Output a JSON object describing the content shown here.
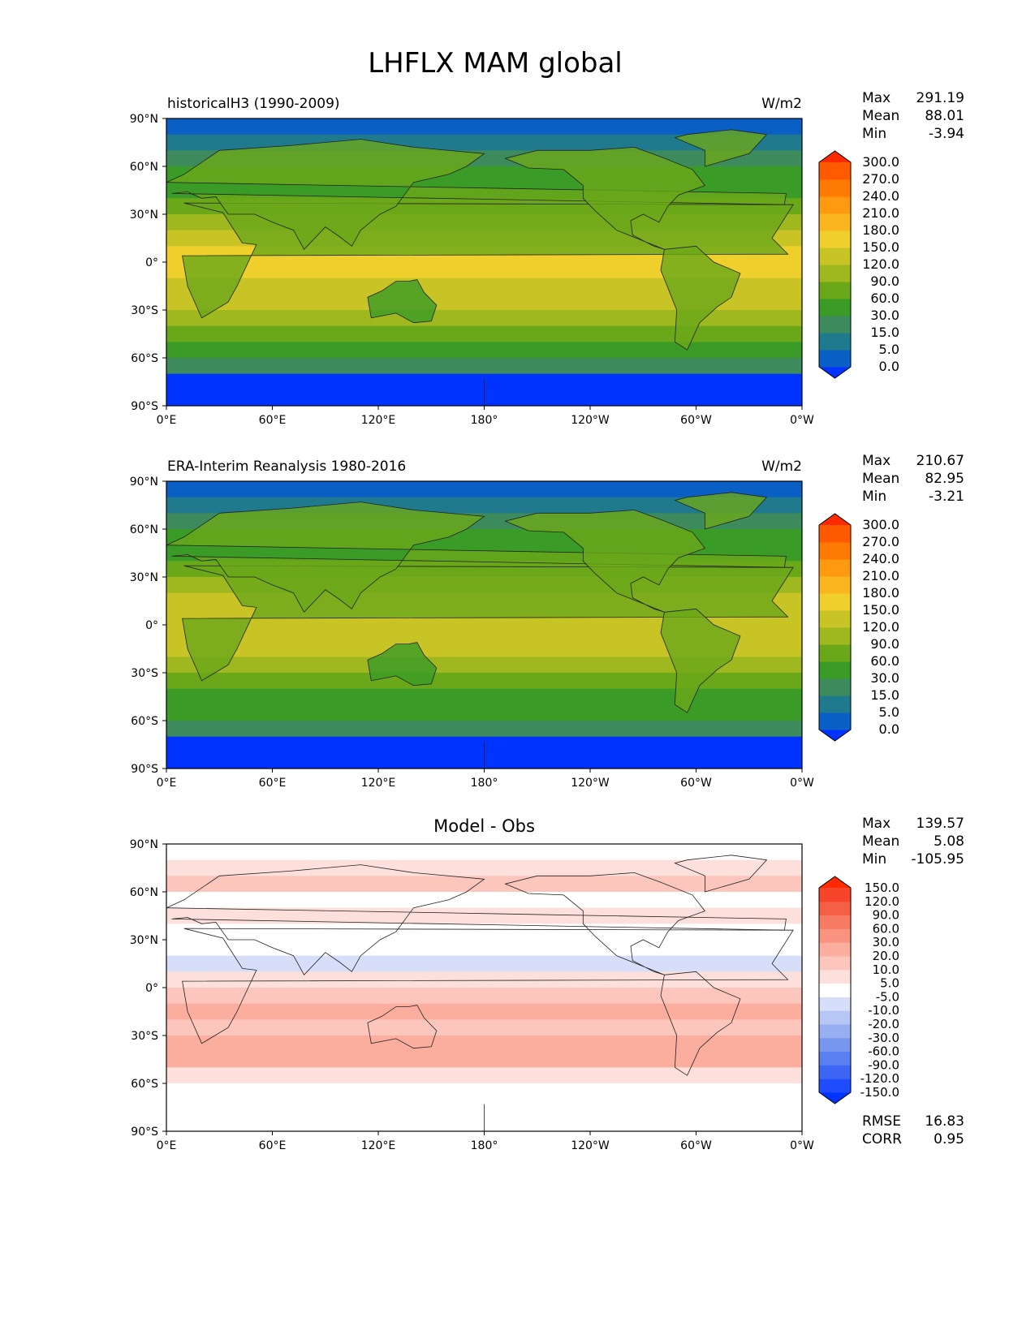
{
  "figure_title": "LHFLX MAM global",
  "chart_data": [
    {
      "type": "heatmap",
      "title": "historicalH3 (1990-2009)",
      "units": "W/m2",
      "stats": {
        "max_label": "Max",
        "max": "291.19",
        "mean_label": "Mean",
        "mean": "88.01",
        "min_label": "Min",
        "min": "-3.94"
      },
      "xticks": [
        "0°E",
        "60°E",
        "120°E",
        "180°",
        "120°W",
        "60°W",
        "0°W"
      ],
      "yticks": [
        "90°N",
        "60°N",
        "30°N",
        "0°",
        "30°S",
        "60°S",
        "90°S"
      ],
      "xlim": [
        0,
        360
      ],
      "ylim": [
        -90,
        90
      ],
      "colorbar": {
        "levels": [
          "0.0",
          "5.0",
          "15.0",
          "30.0",
          "60.0",
          "90.0",
          "120.0",
          "150.0",
          "180.0",
          "210.0",
          "240.0",
          "270.0",
          "300.0"
        ],
        "colors": [
          "#0033ff",
          "#0a5fc4",
          "#1f7a8e",
          "#3d8a5c",
          "#3a9b27",
          "#6aa81a",
          "#a0b81f",
          "#c8c426",
          "#eecf2b",
          "#fbb51e",
          "#ff9a10",
          "#ff7a00",
          "#ff5a00",
          "#ff2a00"
        ],
        "extend": "both"
      }
    },
    {
      "type": "heatmap",
      "title": "ERA-Interim Reanalysis 1980-2016",
      "units": "W/m2",
      "stats": {
        "max_label": "Max",
        "max": "210.67",
        "mean_label": "Mean",
        "mean": "82.95",
        "min_label": "Min",
        "min": "-3.21"
      },
      "xticks": [
        "0°E",
        "60°E",
        "120°E",
        "180°",
        "120°W",
        "60°W",
        "0°W"
      ],
      "yticks": [
        "90°N",
        "60°N",
        "30°N",
        "0°",
        "30°S",
        "60°S",
        "90°S"
      ],
      "xlim": [
        0,
        360
      ],
      "ylim": [
        -90,
        90
      ],
      "colorbar": {
        "levels": [
          "0.0",
          "5.0",
          "15.0",
          "30.0",
          "60.0",
          "90.0",
          "120.0",
          "150.0",
          "180.0",
          "210.0",
          "240.0",
          "270.0",
          "300.0"
        ],
        "colors": [
          "#0033ff",
          "#0a5fc4",
          "#1f7a8e",
          "#3d8a5c",
          "#3a9b27",
          "#6aa81a",
          "#a0b81f",
          "#c8c426",
          "#eecf2b",
          "#fbb51e",
          "#ff9a10",
          "#ff7a00",
          "#ff5a00",
          "#ff2a00"
        ],
        "extend": "both"
      }
    },
    {
      "type": "heatmap",
      "title": "Model - Obs",
      "units": "",
      "stats": {
        "max_label": "Max",
        "max": "139.57",
        "mean_label": "Mean",
        "mean": "5.08",
        "min_label": "Min",
        "min": "-105.95"
      },
      "extra_stats": {
        "rmse_label": "RMSE",
        "rmse": "16.83",
        "corr_label": "CORR",
        "corr": "0.95"
      },
      "xticks": [
        "0°E",
        "60°E",
        "120°E",
        "180°",
        "120°W",
        "60°W",
        "0°W"
      ],
      "yticks": [
        "90°N",
        "60°N",
        "30°N",
        "0°",
        "30°S",
        "60°S",
        "90°S"
      ],
      "xlim": [
        0,
        360
      ],
      "ylim": [
        -90,
        90
      ],
      "colorbar": {
        "levels": [
          "-150.0",
          "-120.0",
          "-90.0",
          "-60.0",
          "-30.0",
          "-20.0",
          "-10.0",
          "-5.0",
          "5.0",
          "10.0",
          "20.0",
          "30.0",
          "60.0",
          "90.0",
          "120.0",
          "150.0"
        ],
        "colors": [
          "#0033ff",
          "#1f4cff",
          "#3d66f5",
          "#5a7ff0",
          "#7896ee",
          "#97aef0",
          "#b6c6f5",
          "#d6defa",
          "#ffffff",
          "#fde0dc",
          "#fcc6bd",
          "#fbad9e",
          "#f99380",
          "#f77a63",
          "#f55f46",
          "#f6452a",
          "#ff2a00"
        ],
        "extend": "both"
      }
    }
  ]
}
